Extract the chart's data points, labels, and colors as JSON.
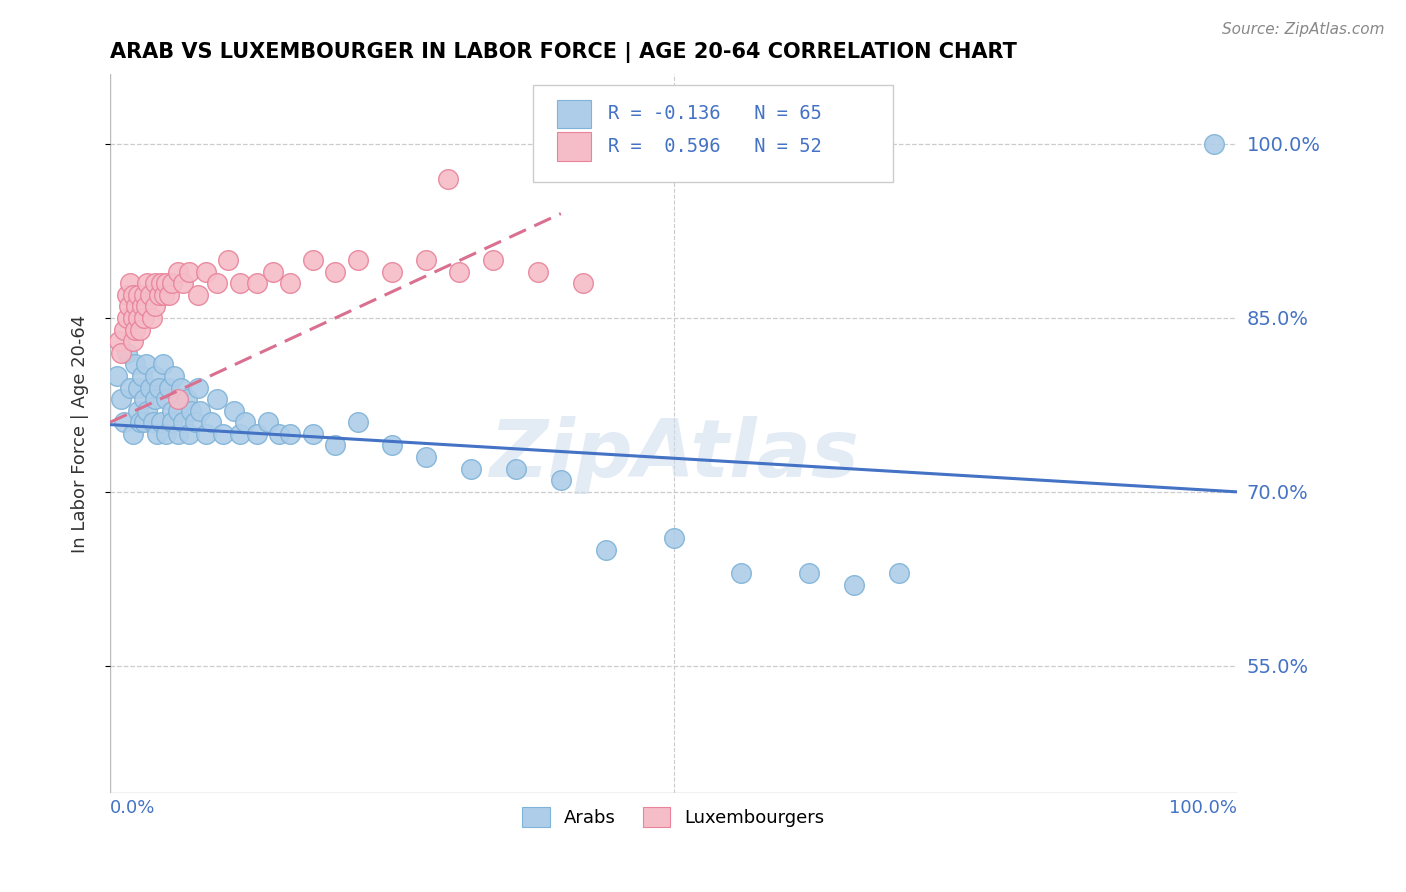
{
  "title": "ARAB VS LUXEMBOURGER IN LABOR FORCE | AGE 20-64 CORRELATION CHART",
  "source": "Source: ZipAtlas.com",
  "ylabel": "In Labor Force | Age 20-64",
  "xlim": [
    0.0,
    1.0
  ],
  "ylim": [
    0.44,
    1.06
  ],
  "yticks": [
    0.55,
    0.7,
    0.85,
    1.0
  ],
  "ytick_labels": [
    "55.0%",
    "70.0%",
    "85.0%",
    "100.0%"
  ],
  "arab_color": "#aecde8",
  "arab_edge_color": "#7fb3d8",
  "lux_color": "#f5bdc8",
  "lux_edge_color": "#e8839a",
  "trend_arab_color": "#4472c4",
  "trend_lux_color": "#d97090",
  "legend_r_arab": "R = -0.136",
  "legend_n_arab": "N = 65",
  "legend_r_lux": "R =  0.596",
  "legend_n_lux": "N = 52",
  "watermark": "ZipAtlas",
  "arab_x": [
    0.006,
    0.01,
    0.012,
    0.015,
    0.018,
    0.02,
    0.022,
    0.025,
    0.025,
    0.027,
    0.028,
    0.03,
    0.03,
    0.032,
    0.033,
    0.035,
    0.038,
    0.04,
    0.04,
    0.042,
    0.043,
    0.045,
    0.047,
    0.05,
    0.05,
    0.052,
    0.055,
    0.055,
    0.057,
    0.06,
    0.06,
    0.063,
    0.065,
    0.068,
    0.07,
    0.072,
    0.075,
    0.078,
    0.08,
    0.085,
    0.09,
    0.095,
    0.1,
    0.11,
    0.115,
    0.12,
    0.13,
    0.14,
    0.15,
    0.16,
    0.18,
    0.2,
    0.22,
    0.25,
    0.28,
    0.32,
    0.36,
    0.4,
    0.44,
    0.5,
    0.56,
    0.62,
    0.66,
    0.7,
    0.98
  ],
  "arab_y": [
    0.8,
    0.78,
    0.76,
    0.82,
    0.79,
    0.75,
    0.81,
    0.77,
    0.79,
    0.76,
    0.8,
    0.78,
    0.76,
    0.81,
    0.77,
    0.79,
    0.76,
    0.8,
    0.78,
    0.75,
    0.79,
    0.76,
    0.81,
    0.78,
    0.75,
    0.79,
    0.77,
    0.76,
    0.8,
    0.77,
    0.75,
    0.79,
    0.76,
    0.78,
    0.75,
    0.77,
    0.76,
    0.79,
    0.77,
    0.75,
    0.76,
    0.78,
    0.75,
    0.77,
    0.75,
    0.76,
    0.75,
    0.76,
    0.75,
    0.75,
    0.75,
    0.74,
    0.76,
    0.74,
    0.73,
    0.72,
    0.72,
    0.71,
    0.65,
    0.66,
    0.63,
    0.63,
    0.62,
    0.63,
    1.0
  ],
  "lux_x": [
    0.008,
    0.01,
    0.012,
    0.015,
    0.015,
    0.017,
    0.018,
    0.02,
    0.02,
    0.02,
    0.022,
    0.023,
    0.025,
    0.025,
    0.027,
    0.028,
    0.03,
    0.03,
    0.032,
    0.033,
    0.035,
    0.037,
    0.04,
    0.04,
    0.043,
    0.045,
    0.048,
    0.05,
    0.052,
    0.055,
    0.06,
    0.065,
    0.07,
    0.078,
    0.085,
    0.095,
    0.105,
    0.115,
    0.13,
    0.145,
    0.16,
    0.18,
    0.2,
    0.22,
    0.25,
    0.28,
    0.31,
    0.34,
    0.38,
    0.42,
    0.3,
    0.06
  ],
  "lux_y": [
    0.83,
    0.82,
    0.84,
    0.85,
    0.87,
    0.86,
    0.88,
    0.83,
    0.85,
    0.87,
    0.84,
    0.86,
    0.85,
    0.87,
    0.84,
    0.86,
    0.87,
    0.85,
    0.86,
    0.88,
    0.87,
    0.85,
    0.88,
    0.86,
    0.87,
    0.88,
    0.87,
    0.88,
    0.87,
    0.88,
    0.89,
    0.88,
    0.89,
    0.87,
    0.89,
    0.88,
    0.9,
    0.88,
    0.88,
    0.89,
    0.88,
    0.9,
    0.89,
    0.9,
    0.89,
    0.9,
    0.89,
    0.9,
    0.89,
    0.88,
    0.97,
    0.78
  ],
  "arab_trend_x": [
    0.0,
    1.0
  ],
  "arab_trend_y": [
    0.758,
    0.7
  ],
  "lux_trend_x": [
    0.0,
    0.4
  ],
  "lux_trend_y": [
    0.76,
    0.94
  ]
}
